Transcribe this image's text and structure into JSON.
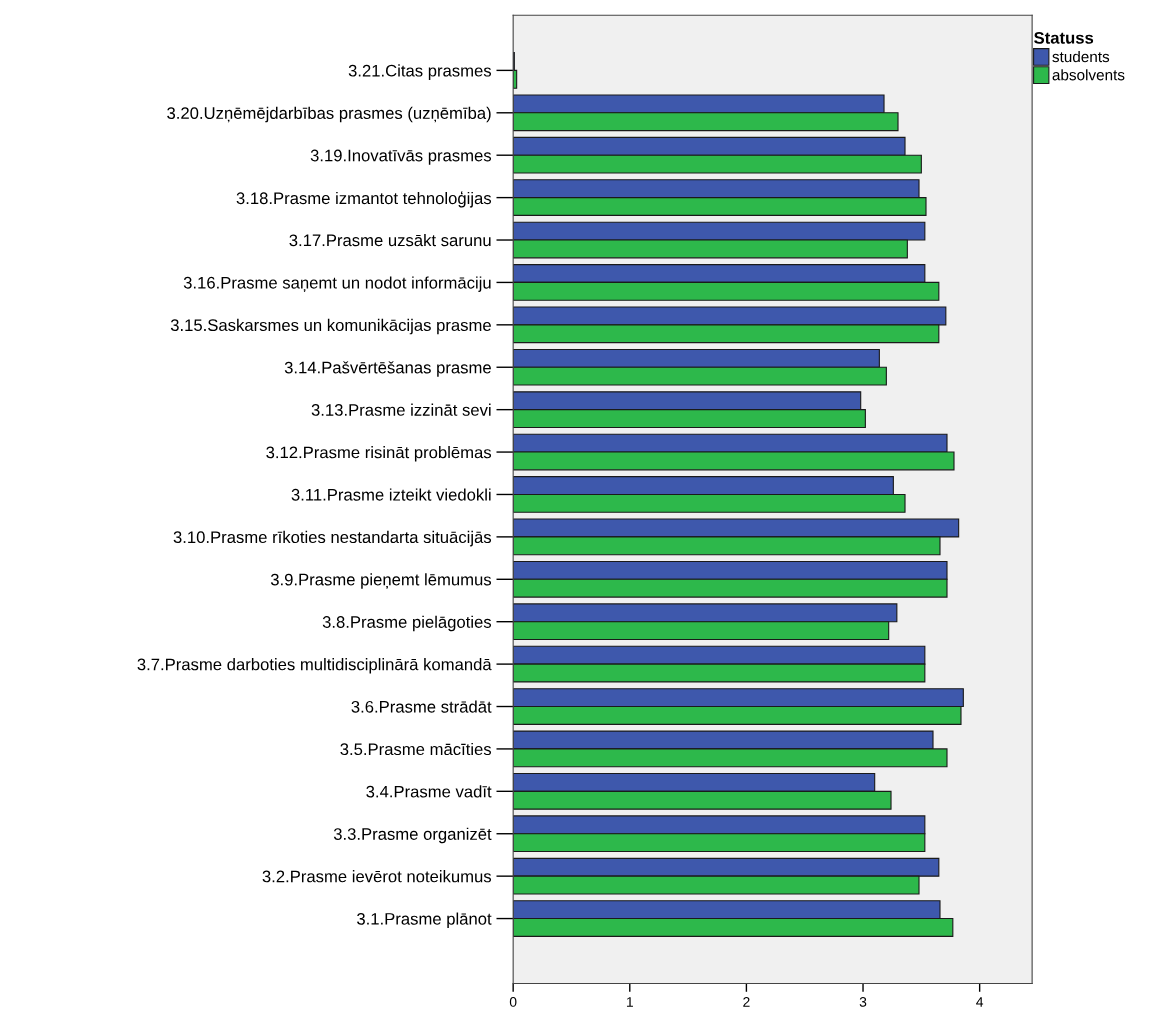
{
  "chart_data": {
    "type": "bar",
    "orientation": "horizontal",
    "categories": [
      "3.21.Citas prasmes",
      "3.20.Uzņēmējdarbības prasmes (uzņēmība)",
      "3.19.Inovatīvās prasmes",
      "3.18.Prasme izmantot tehnoloģijas",
      "3.17.Prasme uzsākt sarunu",
      "3.16.Prasme saņemt un nodot informāciju",
      "3.15.Saskarsmes un komunikācijas prasme",
      "3.14.Pašvērtēšanas prasme",
      "3.13.Prasme izzināt sevi",
      "3.12.Prasme risināt problēmas",
      "3.11.Prasme izteikt viedokli",
      "3.10.Prasme rīkoties nestandarta situācijās",
      "3.9.Prasme pieņemt lēmumus",
      "3.8.Prasme pielāgoties",
      "3.7.Prasme darboties multidisciplinārā komandā",
      "3.6.Prasme strādāt",
      "3.5.Prasme mācīties",
      "3.4.Prasme vadīt",
      "3.3.Prasme organizēt",
      "3.2.Prasme ievērot noteikumus",
      "3.1.Prasme plānot"
    ],
    "series": [
      {
        "name": "students",
        "color": "#3e58ac",
        "values": [
          0.01,
          3.18,
          3.36,
          3.48,
          3.53,
          3.53,
          3.71,
          3.14,
          2.98,
          3.72,
          3.26,
          3.82,
          3.72,
          3.29,
          3.53,
          3.86,
          3.6,
          3.1,
          3.53,
          3.65,
          3.66
        ]
      },
      {
        "name": "absolvents",
        "color": "#2db84b",
        "values": [
          0.03,
          3.3,
          3.5,
          3.54,
          3.38,
          3.65,
          3.65,
          3.2,
          3.02,
          3.78,
          3.36,
          3.66,
          3.72,
          3.22,
          3.53,
          3.84,
          3.72,
          3.24,
          3.53,
          3.48,
          3.77
        ]
      }
    ],
    "xlim": [
      0,
      4.45
    ],
    "xticks": [
      0,
      1,
      2,
      3,
      4
    ],
    "legend_title": "Statuss",
    "legend": "top right",
    "grid": false
  }
}
